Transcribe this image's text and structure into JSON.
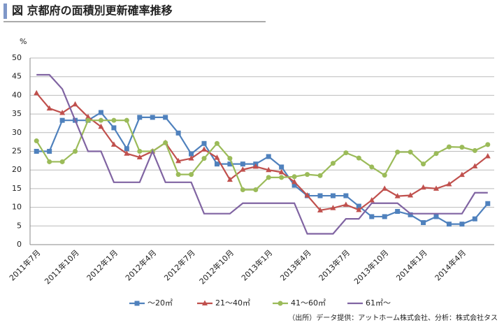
{
  "chart_data": {
    "type": "line",
    "title": "図 京都府の面積別更新確率推移",
    "y_unit": "%",
    "source": "（出所）データ提供：アットホーム株式会社、分析：株式会社タス",
    "categories": [
      "2011年7月",
      null,
      null,
      "2011年10月",
      null,
      null,
      "2012年1月",
      null,
      null,
      "2012年4月",
      null,
      null,
      "2012年7月",
      null,
      null,
      "2012年10月",
      null,
      null,
      "2013年1月",
      null,
      null,
      "2013年4月",
      null,
      null,
      "2013年7月",
      null,
      null,
      "2013年10月",
      null,
      null,
      "2014年1月",
      null,
      null,
      "2014年4月",
      null,
      null
    ],
    "ylim": [
      0,
      50
    ],
    "yticks": [
      0,
      5,
      10,
      15,
      20,
      25,
      30,
      35,
      40,
      45,
      50
    ],
    "grid": true,
    "legend": "bottom",
    "series": [
      {
        "name": "～20㎡",
        "color": "#4f81bd",
        "marker": "square",
        "values": [
          25,
          25,
          33.3,
          33.3,
          33.3,
          35.4,
          31.3,
          25.7,
          34.1,
          34.1,
          34.1,
          29.9,
          24.3,
          27.1,
          21.6,
          21.6,
          21.6,
          21.6,
          23.6,
          20.8,
          15.9,
          13.1,
          13.1,
          13.1,
          13.1,
          10.3,
          7.5,
          7.5,
          8.9,
          8.0,
          5.9,
          7.5,
          5.5,
          5.5,
          6.9,
          11
        ]
      },
      {
        "name": "21～40㎡",
        "color": "#c0504d",
        "marker": "triangle",
        "values": [
          40.6,
          36.5,
          35.3,
          37.6,
          34.2,
          31.6,
          26.8,
          24.4,
          23.4,
          25.0,
          27.3,
          22.4,
          23.1,
          25.5,
          23.3,
          17.4,
          20.1,
          20.9,
          20.0,
          19.4,
          16.8,
          13.2,
          9.2,
          9.8,
          10.7,
          9.3,
          11.9,
          15.0,
          13.0,
          13.2,
          15.3,
          15.0,
          16.2,
          18.7,
          21.0,
          23.7
        ]
      },
      {
        "name": "41～60㎡",
        "color": "#9bbb59",
        "marker": "circle",
        "values": [
          27.8,
          22.2,
          22.2,
          25.0,
          33.3,
          33.3,
          33.3,
          33.3,
          25.0,
          25.0,
          27.3,
          18.8,
          18.8,
          23.1,
          27.1,
          23.1,
          14.7,
          14.7,
          18.0,
          18.0,
          18.2,
          18.8,
          18.5,
          21.8,
          24.6,
          23.2,
          20.8,
          18.6,
          24.8,
          24.8,
          21.6,
          24.4,
          26.2,
          26.1,
          25.2,
          26.8
        ]
      },
      {
        "name": "61㎡～",
        "color": "#8064a2",
        "marker": "none",
        "values": [
          45.5,
          45.5,
          41.7,
          33.3,
          25,
          25,
          16.7,
          16.7,
          16.7,
          25,
          16.7,
          16.7,
          16.7,
          8.3,
          8.3,
          8.3,
          11.1,
          11.1,
          11.1,
          11.1,
          11.1,
          2.9,
          2.9,
          2.9,
          6.9,
          6.9,
          11.1,
          11.1,
          11.1,
          8.3,
          8.3,
          8.3,
          8.3,
          8.3,
          13.9,
          13.9
        ]
      }
    ]
  }
}
